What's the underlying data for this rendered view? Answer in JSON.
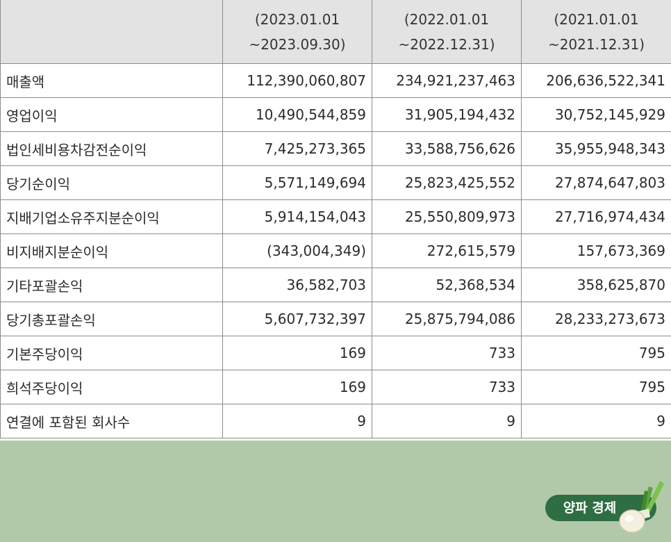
{
  "table": {
    "header": {
      "blank": "",
      "periods": [
        {
          "line1": "(2023.01.01",
          "line2": "~2023.09.30)"
        },
        {
          "line1": "(2022.01.01",
          "line2": "~2022.12.31)"
        },
        {
          "line1": "(2021.01.01",
          "line2": "~2021.12.31)"
        }
      ]
    },
    "rows": [
      {
        "label": "매출액",
        "values": [
          "112,390,060,807",
          "234,921,237,463",
          "206,636,522,341"
        ]
      },
      {
        "label": "영업이익",
        "values": [
          "10,490,544,859",
          "31,905,194,432",
          "30,752,145,929"
        ]
      },
      {
        "label": "법인세비용차감전순이익",
        "values": [
          "7,425,273,365",
          "33,588,756,626",
          "35,955,948,343"
        ]
      },
      {
        "label": "당기순이익",
        "values": [
          "5,571,149,694",
          "25,823,425,552",
          "27,874,647,803"
        ]
      },
      {
        "label": "지배기업소유주지분순이익",
        "values": [
          "5,914,154,043",
          "25,550,809,973",
          "27,716,974,434"
        ]
      },
      {
        "label": "비지배지분순이익",
        "values": [
          "(343,004,349)",
          "272,615,579",
          "157,673,369"
        ]
      },
      {
        "label": "기타포괄손익",
        "values": [
          "36,582,703",
          "52,368,534",
          "358,625,870"
        ]
      },
      {
        "label": "당기총포괄손익",
        "values": [
          "5,607,732,397",
          "25,875,794,086",
          "28,233,273,673"
        ]
      },
      {
        "label": "기본주당이익",
        "values": [
          "169",
          "733",
          "795"
        ]
      },
      {
        "label": "희석주당이익",
        "values": [
          "169",
          "733",
          "795"
        ]
      },
      {
        "label": "연결에 포함된 회사수",
        "values": [
          "9",
          "9",
          "9"
        ]
      }
    ]
  },
  "logo": {
    "text": "양파 경제",
    "icon": "green-onion-icon",
    "badge_color": "#2f6d43"
  },
  "colors": {
    "header_bg": "#e3e3e3",
    "border": "#8c8c8c",
    "footer_bg": "#b2c9a9"
  }
}
